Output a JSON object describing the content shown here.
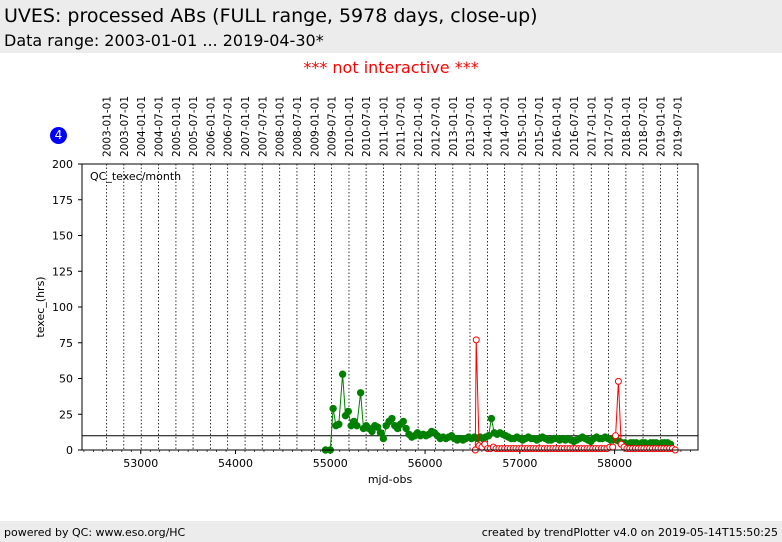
{
  "header": {
    "title": "UVES: processed ABs (FULL range, 5978 days, close-up)",
    "subtitle": "Data range: 2003-01-01 ... 2019-04-30*"
  },
  "notice": "*** not interactive ***",
  "badge": "4",
  "footer": {
    "left": "powered by QC: www.eso.org/HC",
    "right": "created by trendPlotter v4.0 on 2019-05-14T15:50:25"
  },
  "chart_data": {
    "type": "line",
    "panel_label": "QC_texec/month",
    "xlabel": "mjd-obs",
    "ylabel": "texec_(hrs)",
    "xlim": [
      52380,
      58880
    ],
    "ylim": [
      0,
      200
    ],
    "x_ticks": [
      53000,
      54000,
      55000,
      56000,
      57000,
      58000
    ],
    "y_ticks": [
      0,
      25,
      50,
      75,
      100,
      125,
      150,
      175,
      200
    ],
    "reference_line_y": 10,
    "grid": "vertical dotted lines at date ticks",
    "date_ticks": [
      {
        "label": "2003-01-01",
        "mjd": 52640
      },
      {
        "label": "2003-07-01",
        "mjd": 52821
      },
      {
        "label": "2004-01-01",
        "mjd": 53005
      },
      {
        "label": "2004-07-01",
        "mjd": 53187
      },
      {
        "label": "2005-01-01",
        "mjd": 53371
      },
      {
        "label": "2005-07-01",
        "mjd": 53552
      },
      {
        "label": "2006-01-01",
        "mjd": 53736
      },
      {
        "label": "2006-07-01",
        "mjd": 53917
      },
      {
        "label": "2007-01-01",
        "mjd": 54101
      },
      {
        "label": "2007-07-01",
        "mjd": 54282
      },
      {
        "label": "2008-01-01",
        "mjd": 54466
      },
      {
        "label": "2008-07-01",
        "mjd": 54648
      },
      {
        "label": "2009-01-01",
        "mjd": 54832
      },
      {
        "label": "2009-07-01",
        "mjd": 55013
      },
      {
        "label": "2010-01-01",
        "mjd": 55197
      },
      {
        "label": "2010-07-01",
        "mjd": 55378
      },
      {
        "label": "2011-01-01",
        "mjd": 55562
      },
      {
        "label": "2011-07-01",
        "mjd": 55743
      },
      {
        "label": "2012-01-01",
        "mjd": 55927
      },
      {
        "label": "2012-07-01",
        "mjd": 56109
      },
      {
        "label": "2013-01-01",
        "mjd": 56293
      },
      {
        "label": "2013-07-01",
        "mjd": 56474
      },
      {
        "label": "2014-01-01",
        "mjd": 56658
      },
      {
        "label": "2014-07-01",
        "mjd": 56839
      },
      {
        "label": "2015-01-01",
        "mjd": 57023
      },
      {
        "label": "2015-07-01",
        "mjd": 57204
      },
      {
        "label": "2016-01-01",
        "mjd": 57388
      },
      {
        "label": "2016-07-01",
        "mjd": 57570
      },
      {
        "label": "2017-01-01",
        "mjd": 57754
      },
      {
        "label": "2017-07-01",
        "mjd": 57935
      },
      {
        "label": "2018-01-01",
        "mjd": 58119
      },
      {
        "label": "2018-07-01",
        "mjd": 58300
      },
      {
        "label": "2019-01-01",
        "mjd": 58484
      },
      {
        "label": "2019-07-01",
        "mjd": 58665
      }
    ],
    "series": [
      {
        "color": "#008000",
        "marker": "filled-circle",
        "points": [
          [
            54950,
            0
          ],
          [
            55000,
            0
          ],
          [
            55030,
            29
          ],
          [
            55060,
            17
          ],
          [
            55090,
            18
          ],
          [
            55130,
            53
          ],
          [
            55160,
            24
          ],
          [
            55190,
            27
          ],
          [
            55220,
            17
          ],
          [
            55250,
            20
          ],
          [
            55280,
            17
          ],
          [
            55320,
            40
          ],
          [
            55350,
            15
          ],
          [
            55380,
            17
          ],
          [
            55410,
            15
          ],
          [
            55440,
            13
          ],
          [
            55470,
            17
          ],
          [
            55500,
            16
          ],
          [
            55530,
            12
          ],
          [
            55560,
            8
          ],
          [
            55590,
            17
          ],
          [
            55620,
            20
          ],
          [
            55650,
            22
          ],
          [
            55680,
            17
          ],
          [
            55710,
            15
          ],
          [
            55740,
            18
          ],
          [
            55770,
            20
          ],
          [
            55800,
            15
          ],
          [
            55830,
            11
          ],
          [
            55860,
            9
          ],
          [
            55890,
            10
          ],
          [
            55920,
            12
          ],
          [
            55950,
            10
          ],
          [
            55980,
            11
          ],
          [
            56010,
            10
          ],
          [
            56040,
            11
          ],
          [
            56070,
            13
          ],
          [
            56100,
            12
          ],
          [
            56130,
            10
          ],
          [
            56160,
            8
          ],
          [
            56190,
            9
          ],
          [
            56220,
            8
          ],
          [
            56250,
            9
          ],
          [
            56280,
            10
          ],
          [
            56310,
            8
          ],
          [
            56340,
            7
          ],
          [
            56370,
            8
          ],
          [
            56400,
            7
          ],
          [
            56430,
            8
          ],
          [
            56460,
            9
          ],
          [
            56490,
            8
          ],
          [
            56520,
            9
          ],
          [
            56550,
            8
          ],
          [
            56580,
            9
          ],
          [
            56610,
            8
          ],
          [
            56640,
            9
          ],
          [
            56670,
            10
          ],
          [
            56700,
            22
          ],
          [
            56730,
            12
          ],
          [
            56760,
            11
          ],
          [
            56790,
            12
          ],
          [
            56820,
            11
          ],
          [
            56850,
            10
          ],
          [
            56880,
            9
          ],
          [
            56910,
            8
          ],
          [
            56940,
            8
          ],
          [
            56970,
            9
          ],
          [
            57000,
            8
          ],
          [
            57030,
            7
          ],
          [
            57060,
            8
          ],
          [
            57090,
            9
          ],
          [
            57120,
            8
          ],
          [
            57150,
            8
          ],
          [
            57180,
            7
          ],
          [
            57210,
            8
          ],
          [
            57240,
            9
          ],
          [
            57270,
            8
          ],
          [
            57300,
            7
          ],
          [
            57330,
            7
          ],
          [
            57360,
            8
          ],
          [
            57390,
            8
          ],
          [
            57420,
            7
          ],
          [
            57450,
            8
          ],
          [
            57480,
            7
          ],
          [
            57510,
            8
          ],
          [
            57540,
            7
          ],
          [
            57570,
            6
          ],
          [
            57600,
            7
          ],
          [
            57630,
            8
          ],
          [
            57660,
            9
          ],
          [
            57690,
            8
          ],
          [
            57720,
            7
          ],
          [
            57750,
            6
          ],
          [
            57780,
            8
          ],
          [
            57810,
            9
          ],
          [
            57840,
            8
          ],
          [
            57870,
            8
          ],
          [
            57900,
            9
          ],
          [
            57930,
            8
          ],
          [
            57960,
            7
          ],
          [
            57990,
            8
          ],
          [
            58020,
            7
          ],
          [
            58050,
            6
          ],
          [
            58080,
            5
          ],
          [
            58110,
            5
          ],
          [
            58140,
            4
          ],
          [
            58170,
            5
          ],
          [
            58200,
            5
          ],
          [
            58230,
            5
          ],
          [
            58260,
            4
          ],
          [
            58290,
            5
          ],
          [
            58320,
            5
          ],
          [
            58350,
            4
          ],
          [
            58380,
            5
          ],
          [
            58410,
            5
          ],
          [
            58440,
            5
          ],
          [
            58470,
            4
          ],
          [
            58500,
            5
          ],
          [
            58530,
            5
          ],
          [
            58560,
            5
          ],
          [
            58590,
            4
          ]
        ]
      },
      {
        "color": "#ff0000",
        "marker": "open-circle",
        "points": [
          [
            56530,
            0
          ],
          [
            56540,
            77
          ],
          [
            56570,
            3
          ],
          [
            56600,
            2
          ],
          [
            56630,
            4
          ],
          [
            56660,
            1
          ],
          [
            56690,
            1
          ],
          [
            56720,
            2
          ],
          [
            56750,
            1
          ],
          [
            56780,
            1
          ],
          [
            56810,
            1
          ],
          [
            56840,
            1
          ],
          [
            56870,
            1
          ],
          [
            56900,
            1
          ],
          [
            56930,
            1
          ],
          [
            56960,
            1
          ],
          [
            56990,
            1
          ],
          [
            57020,
            1
          ],
          [
            57050,
            1
          ],
          [
            57080,
            1
          ],
          [
            57110,
            1
          ],
          [
            57140,
            1
          ],
          [
            57170,
            1
          ],
          [
            57200,
            1
          ],
          [
            57230,
            1
          ],
          [
            57260,
            1
          ],
          [
            57290,
            1
          ],
          [
            57320,
            1
          ],
          [
            57350,
            1
          ],
          [
            57380,
            1
          ],
          [
            57410,
            1
          ],
          [
            57440,
            1
          ],
          [
            57470,
            1
          ],
          [
            57500,
            1
          ],
          [
            57530,
            1
          ],
          [
            57560,
            1
          ],
          [
            57590,
            1
          ],
          [
            57620,
            1
          ],
          [
            57650,
            1
          ],
          [
            57680,
            1
          ],
          [
            57710,
            1
          ],
          [
            57740,
            1
          ],
          [
            57770,
            1
          ],
          [
            57800,
            1
          ],
          [
            57830,
            1
          ],
          [
            57860,
            1
          ],
          [
            57890,
            1
          ],
          [
            57920,
            1
          ],
          [
            57950,
            2
          ],
          [
            57980,
            2
          ],
          [
            58010,
            10
          ],
          [
            58040,
            48
          ],
          [
            58070,
            4
          ],
          [
            58100,
            2
          ],
          [
            58130,
            1
          ],
          [
            58160,
            1
          ],
          [
            58190,
            1
          ],
          [
            58220,
            1
          ],
          [
            58250,
            1
          ],
          [
            58280,
            1
          ],
          [
            58310,
            1
          ],
          [
            58340,
            1
          ],
          [
            58370,
            1
          ],
          [
            58400,
            1
          ],
          [
            58430,
            1
          ],
          [
            58460,
            1
          ],
          [
            58490,
            1
          ],
          [
            58520,
            1
          ],
          [
            58550,
            1
          ],
          [
            58580,
            1
          ],
          [
            58610,
            1
          ],
          [
            58640,
            0
          ]
        ]
      }
    ]
  }
}
